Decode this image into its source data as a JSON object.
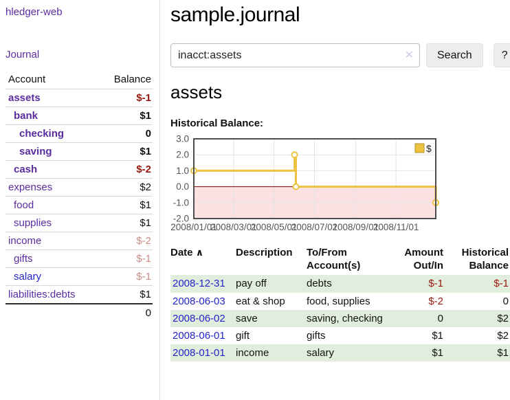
{
  "sidebar": {
    "brand": "hledger-web",
    "nav_journal": "Journal",
    "accounts_table": {
      "headers": {
        "account": "Account",
        "balance": "Balance"
      },
      "rows": [
        {
          "name": "assets",
          "depth": 1,
          "bold": true,
          "balance": "$-1",
          "balance_style": "neg-strong",
          "link_color": "purple"
        },
        {
          "name": "bank",
          "depth": 2,
          "bold": true,
          "balance": "$1",
          "balance_style": "",
          "link_color": "purple"
        },
        {
          "name": "checking",
          "depth": 3,
          "bold": true,
          "balance": "0",
          "balance_style": "",
          "link_color": "purple"
        },
        {
          "name": "saving",
          "depth": 3,
          "bold": true,
          "balance": "$1",
          "balance_style": "",
          "link_color": "purple"
        },
        {
          "name": "cash",
          "depth": 2,
          "bold": true,
          "balance": "$-2",
          "balance_style": "neg-strong",
          "link_color": "purple"
        },
        {
          "name": "expenses",
          "depth": 1,
          "bold": false,
          "balance": "$2",
          "balance_style": "",
          "link_color": "purple"
        },
        {
          "name": "food",
          "depth": 2,
          "bold": false,
          "balance": "$1",
          "balance_style": "",
          "link_color": "purple"
        },
        {
          "name": "supplies",
          "depth": 2,
          "bold": false,
          "balance": "$1",
          "balance_style": "",
          "link_color": "purple"
        },
        {
          "name": "income",
          "depth": 1,
          "bold": false,
          "balance": "$-2",
          "balance_style": "neg-faded",
          "link_color": "purple"
        },
        {
          "name": "gifts",
          "depth": 2,
          "bold": false,
          "balance": "$-1",
          "balance_style": "neg-faded",
          "link_color": "purple"
        },
        {
          "name": "salary",
          "depth": 2,
          "bold": false,
          "balance": "$-1",
          "balance_style": "neg-faded",
          "link_color": "blue"
        },
        {
          "name": "liabilities:debts",
          "depth": 1,
          "bold": false,
          "balance": "$1",
          "balance_style": "",
          "link_color": "purple"
        }
      ],
      "total": "0"
    }
  },
  "header": {
    "title": "sample.journal"
  },
  "search": {
    "query": "inacct:assets",
    "clear_icon": "✕",
    "search_button": "Search",
    "help_button": "?"
  },
  "account_page": {
    "heading": "assets",
    "chart_label": "Historical Balance:"
  },
  "chart_data": {
    "type": "line",
    "subtype": "step",
    "title": "Historical Balance",
    "series": [
      {
        "name": "$",
        "color": "#edc240",
        "points": [
          {
            "date": "2008-01-01",
            "value": 1
          },
          {
            "date": "2008-06-01",
            "value": 2
          },
          {
            "date": "2008-06-03",
            "value": 0
          },
          {
            "date": "2008-12-31",
            "value": -1
          }
        ]
      }
    ],
    "x_ticks": [
      "2008/01/01",
      "2008/03/01",
      "2008/05/01",
      "2008/07/01",
      "2008/09/01",
      "2008/11/01"
    ],
    "y_ticks": [
      "3.0",
      "2.0",
      "1.0",
      "0.0",
      "-1.0",
      "-2.0"
    ],
    "xlim": [
      "2008-01-01",
      "2008-12-31"
    ],
    "ylim": [
      -2,
      3
    ],
    "grid": true,
    "legend_position": "top-right",
    "negative_region_color": "#fbe1e1",
    "zero_line_color": "#8b0000",
    "border_color": "#4d4d4d",
    "gridline_color": "#e3e3e3",
    "tick_label_color": "#545454"
  },
  "register_table": {
    "headers": {
      "date": "Date",
      "sort_indicator": "∧",
      "description": "Description",
      "accounts_line1": "To/From",
      "accounts_line2": "Account(s)",
      "amount_line1": "Amount",
      "amount_line2": "Out/In",
      "balance_line1": "Historical",
      "balance_line2": "Balance"
    },
    "rows": [
      {
        "date": "2008-12-31",
        "description": "pay off",
        "accounts": "debts",
        "amount": "$-1",
        "amount_style": "neg-strong",
        "balance": "$-1",
        "balance_style": "neg-strong"
      },
      {
        "date": "2008-06-03",
        "description": "eat & shop",
        "accounts": "food, supplies",
        "amount": "$-2",
        "amount_style": "neg-strong",
        "balance": "0",
        "balance_style": ""
      },
      {
        "date": "2008-06-02",
        "description": "save",
        "accounts": "saving, checking",
        "amount": "0",
        "amount_style": "",
        "balance": "$2",
        "balance_style": ""
      },
      {
        "date": "2008-06-01",
        "description": "gift",
        "accounts": "gifts",
        "amount": "$1",
        "amount_style": "",
        "balance": "$2",
        "balance_style": ""
      },
      {
        "date": "2008-01-01",
        "description": "income",
        "accounts": "salary",
        "amount": "$1",
        "amount_style": "",
        "balance": "$1",
        "balance_style": ""
      }
    ]
  },
  "colors": {
    "purple_link": "#5a2ca0",
    "blue_link": "#2323cc",
    "negative_strong": "#99170e",
    "negative_faded": "#c98b84",
    "row_green": "#e2eedd",
    "series_gold": "#edc240"
  }
}
